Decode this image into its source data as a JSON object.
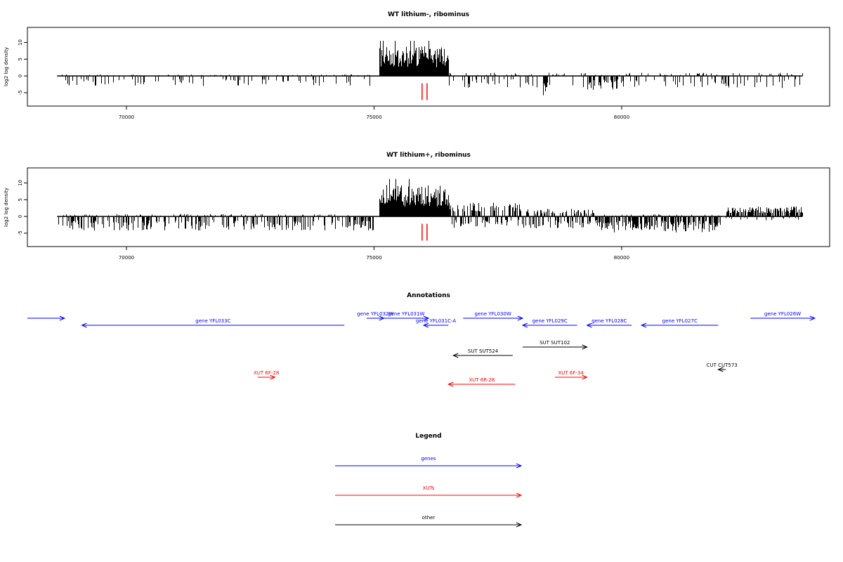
{
  "colors": {
    "gene": "#0000ff",
    "xut": "#ff0000",
    "other": "#000000",
    "bars": "#000000",
    "marker": "#ff0000"
  },
  "chart_data": [
    {
      "type": "bar",
      "title": "WT lithium-, ribominus",
      "ylabel": "log2 log density",
      "xlim": [
        68000,
        84200
      ],
      "ylim": [
        -9,
        14.5
      ],
      "x_ticks": [
        70000,
        75000,
        80000
      ],
      "x_tick_labels": [
        "70000",
        "75000",
        "80000"
      ],
      "y_ticks": [
        -5,
        0,
        5,
        10
      ],
      "y_tick_labels": [
        "-5",
        "0",
        "5",
        "10"
      ],
      "grid": false,
      "data_range": [
        68600,
        83650
      ],
      "markers_x": [
        75970,
        76070
      ],
      "regions": [
        {
          "start": 68600,
          "end": 75000,
          "pos": 0.4,
          "neg": 2.5,
          "density": 0.3,
          "prob": 0.6
        },
        {
          "start": 75100,
          "end": 76500,
          "pos": 7.5,
          "neg": 0.2,
          "density": 1.0,
          "prob": 0.0
        },
        {
          "start": 76500,
          "end": 83650,
          "pos": 0.8,
          "neg": 3.0,
          "density": 0.3,
          "prob": 0.6
        },
        {
          "start": 78300,
          "end": 78500,
          "pos": 0.2,
          "neg": 5.0,
          "density": 0.7,
          "prob": 0.9
        },
        {
          "start": 79300,
          "end": 80000,
          "pos": 0.3,
          "neg": 3.5,
          "density": 0.7,
          "prob": 0.8
        }
      ]
    },
    {
      "type": "bar",
      "title": "WT lithium+, ribominus",
      "ylabel": "log2 log density",
      "xlim": [
        68000,
        84200
      ],
      "ylim": [
        -9,
        14.5
      ],
      "x_ticks": [
        70000,
        75000,
        80000
      ],
      "x_tick_labels": [
        "70000",
        "75000",
        "80000"
      ],
      "y_ticks": [
        -5,
        0,
        5,
        10
      ],
      "y_tick_labels": [
        "-5",
        "0",
        "5",
        "10"
      ],
      "grid": false,
      "data_range": [
        68600,
        83650
      ],
      "markers_x": [
        75970,
        76070
      ],
      "regions": [
        {
          "start": 68600,
          "end": 75000,
          "pos": 0.6,
          "neg": 3.5,
          "density": 0.55,
          "prob": 0.75
        },
        {
          "start": 75100,
          "end": 76500,
          "pos": 8.0,
          "neg": 0.2,
          "density": 1.0,
          "prob": 0.0
        },
        {
          "start": 76500,
          "end": 78000,
          "pos": 3.5,
          "neg": 3.0,
          "density": 0.85,
          "prob": 0.4
        },
        {
          "start": 78000,
          "end": 79500,
          "pos": 2.0,
          "neg": 3.0,
          "density": 0.8,
          "prob": 0.5
        },
        {
          "start": 79500,
          "end": 82000,
          "pos": 0.5,
          "neg": 4.0,
          "density": 0.85,
          "prob": 0.8
        },
        {
          "start": 82100,
          "end": 83650,
          "pos": 2.5,
          "neg": 1.0,
          "density": 0.85,
          "prob": 0.2
        }
      ]
    }
  ],
  "annotations": {
    "title": "Annotations",
    "xlim": [
      68000,
      84200
    ],
    "items": [
      {
        "label": "",
        "start": 68000,
        "end": 68750,
        "strand": "+",
        "kind": "gene",
        "row": 0
      },
      {
        "label": "gene YFL033C",
        "start": 69100,
        "end": 74400,
        "strand": "-",
        "kind": "gene",
        "row": 1
      },
      {
        "label": "gene YFL032W",
        "start": 74850,
        "end": 75200,
        "strand": "+",
        "kind": "gene",
        "row": 0
      },
      {
        "label": "gene YFL031W",
        "start": 75200,
        "end": 76100,
        "strand": "+",
        "kind": "gene",
        "row": 0
      },
      {
        "label": "gene YFL031C-A",
        "start": 76000,
        "end": 76500,
        "strand": "-",
        "kind": "gene",
        "row": 1
      },
      {
        "label": "gene YFL030W",
        "start": 76800,
        "end": 78000,
        "strand": "+",
        "kind": "gene",
        "row": 0
      },
      {
        "label": "gene YFL029C",
        "start": 78000,
        "end": 79100,
        "strand": "-",
        "kind": "gene",
        "row": 1
      },
      {
        "label": "gene YFL028C",
        "start": 79300,
        "end": 80200,
        "strand": "-",
        "kind": "gene",
        "row": 1
      },
      {
        "label": "gene YFL027C",
        "start": 80400,
        "end": 81950,
        "strand": "-",
        "kind": "gene",
        "row": 1
      },
      {
        "label": "gene YFL026W",
        "start": 82600,
        "end": 83900,
        "strand": "+",
        "kind": "gene",
        "row": 0
      },
      {
        "label": "SUT SUT524",
        "start": 76600,
        "end": 77800,
        "strand": "-",
        "kind": "other",
        "row": 2
      },
      {
        "label": "SUT SUT102",
        "start": 78000,
        "end": 79300,
        "strand": "+",
        "kind": "other",
        "row": 3
      },
      {
        "label": "CUT CUT573",
        "start": 81950,
        "end": 82100,
        "strand": "-",
        "kind": "other",
        "row": 4
      },
      {
        "label": "XUT 6F-28",
        "start": 72650,
        "end": 73000,
        "strand": "+",
        "kind": "xut",
        "row": 5
      },
      {
        "label": "XUT 6R-28",
        "start": 76500,
        "end": 77850,
        "strand": "-",
        "kind": "xut",
        "row": 6
      },
      {
        "label": "XUT 6F-34",
        "start": 78650,
        "end": 79300,
        "strand": "+",
        "kind": "xut",
        "row": 5
      }
    ]
  },
  "legend": {
    "title": "Legend",
    "entries": [
      {
        "label": "genes",
        "kind": "gene"
      },
      {
        "label": "XUTs",
        "kind": "xut"
      },
      {
        "label": "other",
        "kind": "other"
      }
    ]
  }
}
